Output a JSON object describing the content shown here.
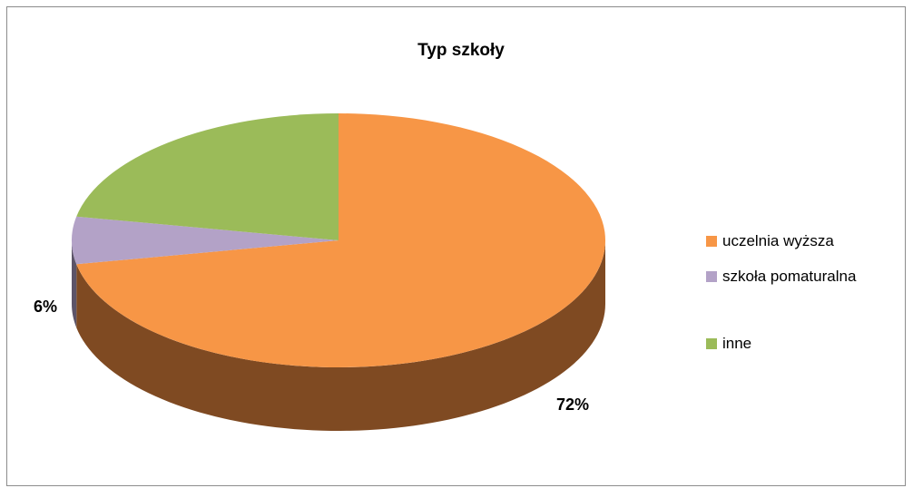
{
  "chart_data": {
    "type": "pie",
    "title": "Typ szkoły",
    "categories": [
      "uczelnia wyższa",
      "szkoła pomaturalna",
      "inne"
    ],
    "values": [
      72,
      6,
      22
    ],
    "unit": "%",
    "data_labels": [
      "72%",
      "6%",
      ""
    ],
    "colors": [
      "#f79646",
      "#b3a2c7",
      "#9bbb59"
    ],
    "side_colors": [
      "#7f4a22",
      "#5c5468",
      "#4f6130"
    ],
    "three_d": true,
    "start_angle_deg": 90,
    "direction": "clockwise",
    "legend": "right"
  }
}
